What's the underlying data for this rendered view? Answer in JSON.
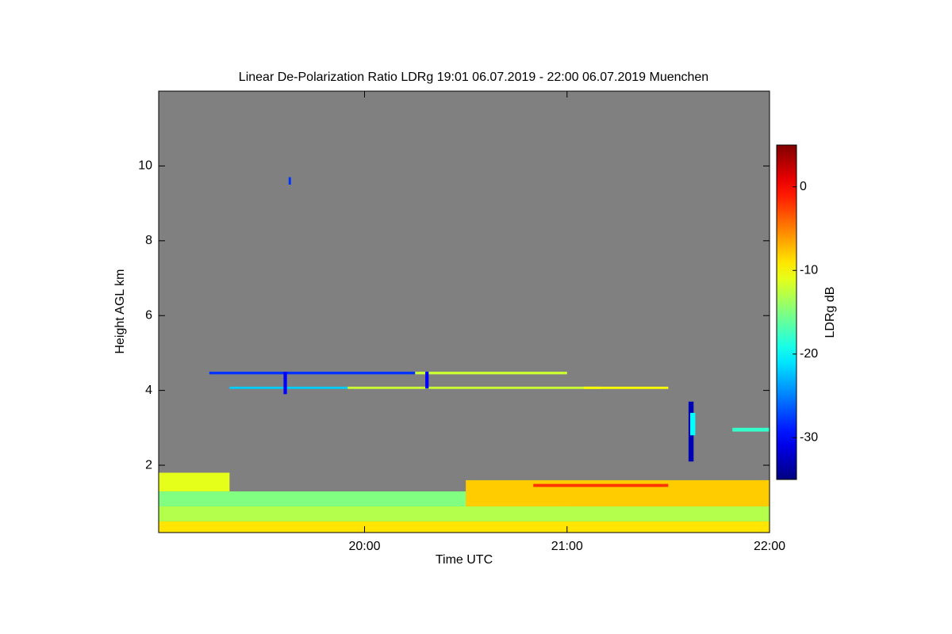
{
  "chart_data": {
    "type": "heatmap",
    "title": "Linear De-Polarization Ratio LDRg   19:01 06.07.2019 - 22:00 06.07.2019 Muenchen",
    "x_label": "Time UTC",
    "y_label": "Height AGL km",
    "colorbar_label": "LDRg dB",
    "colormap": "jet",
    "background": "#808080",
    "xlim": [
      1139,
      1320
    ],
    "xticks": [
      {
        "value": 1200,
        "label": "20:00"
      },
      {
        "value": 1260,
        "label": "21:00"
      },
      {
        "value": 1320,
        "label": "22:00"
      }
    ],
    "ylim": [
      0.2,
      12
    ],
    "yticks": [
      2,
      4,
      6,
      8,
      10
    ],
    "clim": [
      -35,
      5
    ],
    "cticks": [
      0,
      -10,
      -20,
      -30
    ],
    "features": [
      {
        "t0": 1139,
        "t1": 1320,
        "h0": 0.2,
        "h1": 0.5,
        "value": -9
      },
      {
        "t0": 1139,
        "t1": 1320,
        "h0": 0.5,
        "h1": 0.9,
        "value": -13
      },
      {
        "t0": 1139,
        "t1": 1260,
        "h0": 0.9,
        "h1": 1.3,
        "value": -15
      },
      {
        "t0": 1139,
        "t1": 1160,
        "h0": 1.3,
        "h1": 1.8,
        "value": -11
      },
      {
        "t0": 1230,
        "t1": 1320,
        "h0": 0.9,
        "h1": 1.6,
        "value": -8
      },
      {
        "t0": 1250,
        "t1": 1290,
        "h0": 1.42,
        "h1": 1.5,
        "value": -2
      },
      {
        "t0": 1154,
        "t1": 1215,
        "h0": 4.43,
        "h1": 4.5,
        "value": -28
      },
      {
        "t0": 1215,
        "t1": 1260,
        "h0": 4.43,
        "h1": 4.5,
        "value": -12
      },
      {
        "t0": 1160,
        "t1": 1195,
        "h0": 4.04,
        "h1": 4.1,
        "value": -22
      },
      {
        "t0": 1195,
        "t1": 1270,
        "h0": 4.04,
        "h1": 4.1,
        "value": -12
      },
      {
        "t0": 1265,
        "t1": 1290,
        "h0": 4.04,
        "h1": 4.1,
        "value": -10
      },
      {
        "t0": 1176,
        "t1": 1177,
        "h0": 3.9,
        "h1": 4.5,
        "value": -30
      },
      {
        "t0": 1218,
        "t1": 1219,
        "h0": 4.05,
        "h1": 4.5,
        "value": -30
      },
      {
        "t0": 1177.5,
        "t1": 1178.2,
        "h0": 9.5,
        "h1": 9.7,
        "value": -28
      },
      {
        "t0": 1296,
        "t1": 1297.5,
        "h0": 2.1,
        "h1": 3.7,
        "value": -33
      },
      {
        "t0": 1296.5,
        "t1": 1298,
        "h0": 2.8,
        "h1": 3.4,
        "value": -20
      },
      {
        "t0": 1309,
        "t1": 1320,
        "h0": 2.9,
        "h1": 3.0,
        "value": -18
      }
    ]
  }
}
